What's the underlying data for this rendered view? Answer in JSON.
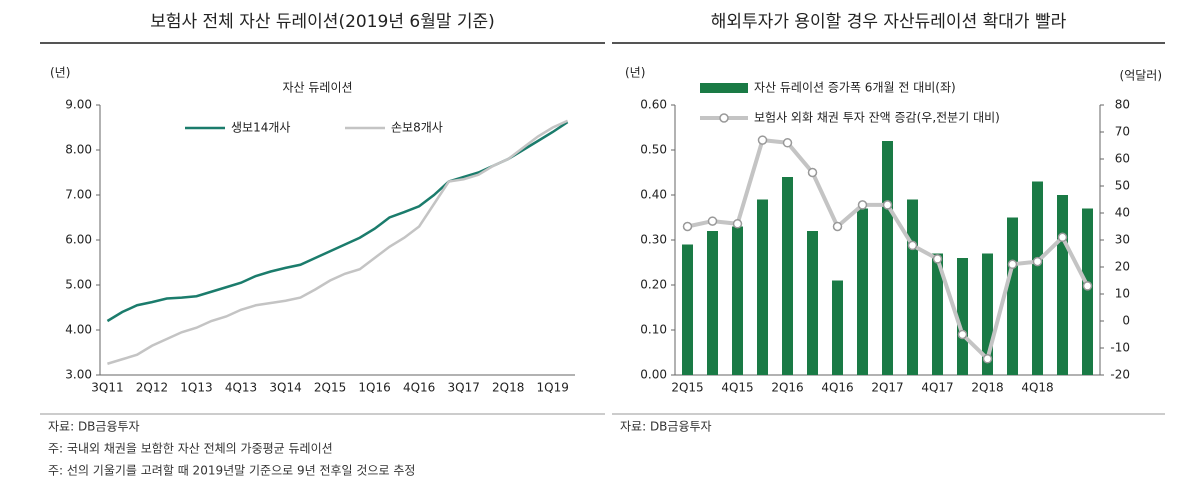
{
  "chart_data": [
    {
      "type": "line",
      "title": "보험사 전체 자산 듀레이션(2019년 6월말 기준)",
      "subtitle": "자산 듀레이션",
      "y_unit": "(년)",
      "categories": [
        "3Q11",
        null,
        null,
        "2Q12",
        null,
        null,
        "1Q13",
        null,
        null,
        "4Q13",
        null,
        null,
        "3Q14",
        null,
        null,
        "2Q15",
        null,
        null,
        "1Q16",
        null,
        null,
        "4Q16",
        null,
        null,
        "3Q17",
        null,
        null,
        "2Q18",
        null,
        null,
        "1Q19",
        null
      ],
      "series": [
        {
          "name": "생보14개사",
          "color": "#1b7c6c",
          "values": [
            4.2,
            4.4,
            4.55,
            4.62,
            4.7,
            4.72,
            4.75,
            4.85,
            4.95,
            5.05,
            5.2,
            5.3,
            5.38,
            5.45,
            5.6,
            5.75,
            5.9,
            6.05,
            6.25,
            6.5,
            6.62,
            6.75,
            7.0,
            7.3,
            7.4,
            7.5,
            7.65,
            7.8,
            8.0,
            8.2,
            8.4,
            8.62
          ]
        },
        {
          "name": "손보8개사",
          "color": "#c4c4c4",
          "values": [
            3.25,
            3.35,
            3.45,
            3.65,
            3.8,
            3.95,
            4.05,
            4.2,
            4.3,
            4.45,
            4.55,
            4.6,
            4.65,
            4.72,
            4.9,
            5.1,
            5.25,
            5.35,
            5.6,
            5.85,
            6.05,
            6.3,
            6.8,
            7.3,
            7.35,
            7.45,
            7.65,
            7.8,
            8.05,
            8.3,
            8.5,
            8.65
          ]
        }
      ],
      "ylim": [
        3,
        9
      ],
      "yticks": [
        {
          "value": 3,
          "label": "3.00"
        },
        {
          "value": 4,
          "label": "4.00"
        },
        {
          "value": 5,
          "label": "5.00"
        },
        {
          "value": 6,
          "label": "6.00"
        },
        {
          "value": 7,
          "label": "7.00"
        },
        {
          "value": 8,
          "label": "8.00"
        },
        {
          "value": 9,
          "label": "9.00"
        }
      ],
      "notes": [
        "자료: DB금융투자",
        "주: 국내외 채권을 보함한 자산 전체의 가중평균 듀레이션",
        "주: 선의 기울기를 고려할 때 2019년말 기준으로 9년 전후일 것으로 추정"
      ]
    },
    {
      "type": "bar",
      "title": "해외투자가 용이할 경우 자산듀레이션 확대가 빨라",
      "y_unit": "(년)",
      "y2_unit": "(억달러)",
      "categories": [
        "2Q15",
        null,
        "4Q15",
        null,
        "2Q16",
        null,
        "4Q16",
        null,
        "2Q17",
        null,
        "4Q17",
        null,
        "2Q18",
        null,
        "4Q18",
        null,
        null
      ],
      "series": [
        {
          "name": "자산 듀레이션 증가폭 6개월 전 대비(좌)",
          "type": "bar",
          "color": "#1a7a45",
          "values": [
            0.29,
            0.32,
            0.33,
            0.39,
            0.44,
            0.32,
            0.21,
            0.37,
            0.52,
            0.39,
            0.27,
            0.26,
            0.27,
            0.35,
            0.43,
            0.4,
            0.37
          ]
        },
        {
          "name": "보험사 외화 채권 투자 잔액 증감(우,전분기 대비)",
          "type": "line",
          "axis": "y2",
          "color": "#c4c4c4",
          "values": [
            35,
            37,
            36,
            67,
            66,
            55,
            35,
            43,
            43,
            28,
            23,
            -5,
            -14,
            21,
            22,
            31,
            13
          ]
        }
      ],
      "ylim": [
        0,
        0.6
      ],
      "yticks": [
        {
          "value": 0,
          "label": "0.00"
        },
        {
          "value": 0.1,
          "label": "0.10"
        },
        {
          "value": 0.2,
          "label": "0.20"
        },
        {
          "value": 0.3,
          "label": "0.30"
        },
        {
          "value": 0.4,
          "label": "0.40"
        },
        {
          "value": 0.5,
          "label": "0.50"
        },
        {
          "value": 0.6,
          "label": "0.60"
        }
      ],
      "y2lim": [
        -20,
        80
      ],
      "y2ticks": [
        -20,
        -10,
        0,
        10,
        20,
        30,
        40,
        50,
        60,
        70,
        80
      ],
      "notes": [
        "자료: DB금융투자"
      ]
    }
  ]
}
